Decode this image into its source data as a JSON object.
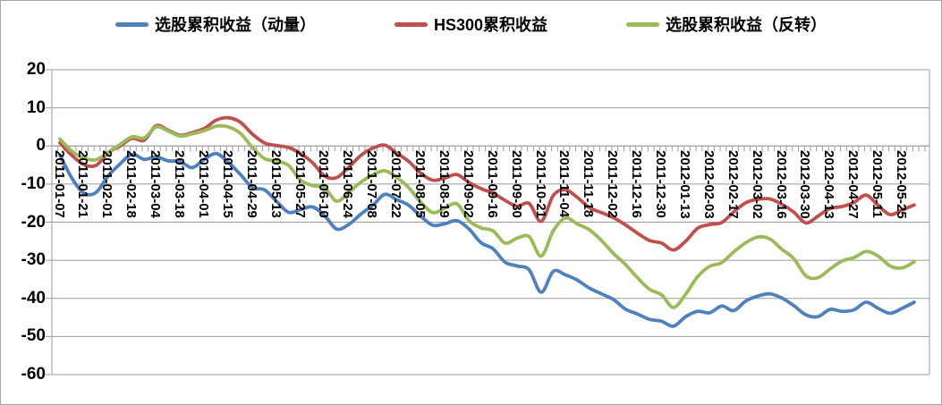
{
  "figure": {
    "background": "#FFFFFF",
    "border_color": "#A6A6A6",
    "gridline_color": "#9B9B9B"
  },
  "legend": {
    "items": [
      {
        "label": "选股累积收益（动量）",
        "color": "#4F81BD"
      },
      {
        "label": "HS300累积收益",
        "color": "#C0504D"
      },
      {
        "label": "选股累积收益（反转）",
        "color": "#9BBB59"
      }
    ]
  },
  "chart_data": {
    "type": "line",
    "title": "",
    "xlabel": "",
    "ylabel": "",
    "grid": true,
    "legend_position": "top",
    "y_axis": {
      "min": -60,
      "max": 20,
      "step": 10,
      "tick_labels": [
        "20",
        "10",
        "0",
        "-10",
        "-20",
        "-30",
        "-40",
        "-50",
        "-60"
      ]
    },
    "x_axis": {
      "label_rotation": 90,
      "points_per_tick": 2,
      "tick_labels": [
        "2011-01-07",
        "2011-01-21",
        "2011-02-01",
        "2011-02-18",
        "2011-03-04",
        "2011-03-18",
        "2011-04-01",
        "2011-04-15",
        "2011-04-29",
        "2011-05-13",
        "2011-05-27",
        "2011-06-10",
        "2011-06-24",
        "2011-07-08",
        "2011-07-22",
        "2011-08-05",
        "2011-08-19",
        "2011-09-02",
        "2011-09-16",
        "2011-09-30",
        "2011-10-21",
        "2011-11-04",
        "2011-11-18",
        "2011-12-02",
        "2011-12-16",
        "2011-12-30",
        "2012-01-13",
        "2012-02-03",
        "2012-02-17",
        "2012-03-02",
        "2012-03-16",
        "2012-03-30",
        "2012-04-13",
        "2012-04-27",
        "2012-05-11",
        "2012-05-25"
      ]
    },
    "series": [
      {
        "name": "选股累积收益（动量）",
        "color": "#4F81BD",
        "values": [
          -2.4,
          -8.5,
          -12.4,
          -12.2,
          -7.9,
          -4.7,
          -2.2,
          -3.5,
          -2.9,
          -3.9,
          -4.1,
          -5.7,
          -3.5,
          -2.0,
          -4.3,
          -7.5,
          -10.9,
          -11.5,
          -14.5,
          -17.4,
          -16.7,
          -16.0,
          -18.3,
          -21.8,
          -20.6,
          -17.9,
          -15.6,
          -12.7,
          -14.1,
          -15.6,
          -18.5,
          -20.8,
          -20.4,
          -19.6,
          -21.8,
          -25.4,
          -27.0,
          -30.5,
          -31.5,
          -32.5,
          -38.4,
          -32.9,
          -33.8,
          -35.2,
          -37.3,
          -38.8,
          -40.3,
          -42.8,
          -44.1,
          -45.5,
          -46.0,
          -47.3,
          -44.8,
          -43.4,
          -43.8,
          -42.0,
          -43.2,
          -40.7,
          -39.4,
          -38.8,
          -39.9,
          -41.9,
          -44.3,
          -44.8,
          -42.9,
          -43.4,
          -43.0,
          -41.0,
          -42.6,
          -43.9,
          -42.6,
          -41.0
        ]
      },
      {
        "name": "HS300累积收益",
        "color": "#C0504D",
        "values": [
          0.8,
          -2.5,
          -4.9,
          -5.1,
          -1.8,
          0.0,
          2.0,
          1.5,
          5.3,
          4.1,
          2.8,
          3.5,
          4.6,
          6.8,
          7.4,
          6.2,
          3.1,
          0.8,
          0.1,
          -0.4,
          -2.0,
          -4.4,
          -7.9,
          -8.3,
          -5.6,
          -2.5,
          -0.6,
          0.2,
          -1.9,
          -4.1,
          -7.2,
          -9.0,
          -8.4,
          -7.5,
          -9.6,
          -11.2,
          -12.4,
          -14.3,
          -15.8,
          -15.1,
          -19.8,
          -13.0,
          -11.5,
          -13.5,
          -16.2,
          -17.5,
          -18.8,
          -20.7,
          -22.9,
          -24.8,
          -25.5,
          -27.3,
          -25.0,
          -21.6,
          -20.6,
          -20.1,
          -17.3,
          -14.9,
          -14.0,
          -13.9,
          -15.3,
          -17.4,
          -20.2,
          -18.4,
          -16.4,
          -15.9,
          -14.8,
          -12.9,
          -15.6,
          -18.0,
          -16.8,
          -15.5
        ]
      },
      {
        "name": "选股累积收益（反转）",
        "color": "#9BBB59",
        "values": [
          1.8,
          -1.4,
          -3.2,
          -3.6,
          -1.7,
          0.4,
          2.4,
          2.1,
          5.0,
          3.9,
          2.6,
          3.2,
          4.0,
          5.2,
          5.0,
          3.3,
          -0.4,
          -3.3,
          -4.0,
          -5.1,
          -9.0,
          -10.4,
          -11.0,
          -14.5,
          -12.2,
          -9.5,
          -7.6,
          -6.5,
          -8.3,
          -11.0,
          -14.8,
          -17.5,
          -16.3,
          -15.2,
          -19.6,
          -21.5,
          -22.3,
          -25.5,
          -24.2,
          -23.8,
          -28.9,
          -22.3,
          -18.9,
          -20.5,
          -22.0,
          -24.8,
          -28.2,
          -31.1,
          -34.6,
          -37.6,
          -39.1,
          -42.4,
          -38.9,
          -34.3,
          -31.6,
          -30.6,
          -27.8,
          -25.4,
          -23.9,
          -24.4,
          -27.1,
          -29.6,
          -34.1,
          -34.6,
          -32.3,
          -30.2,
          -29.3,
          -27.7,
          -28.9,
          -31.5,
          -32.0,
          -30.4
        ]
      }
    ]
  }
}
